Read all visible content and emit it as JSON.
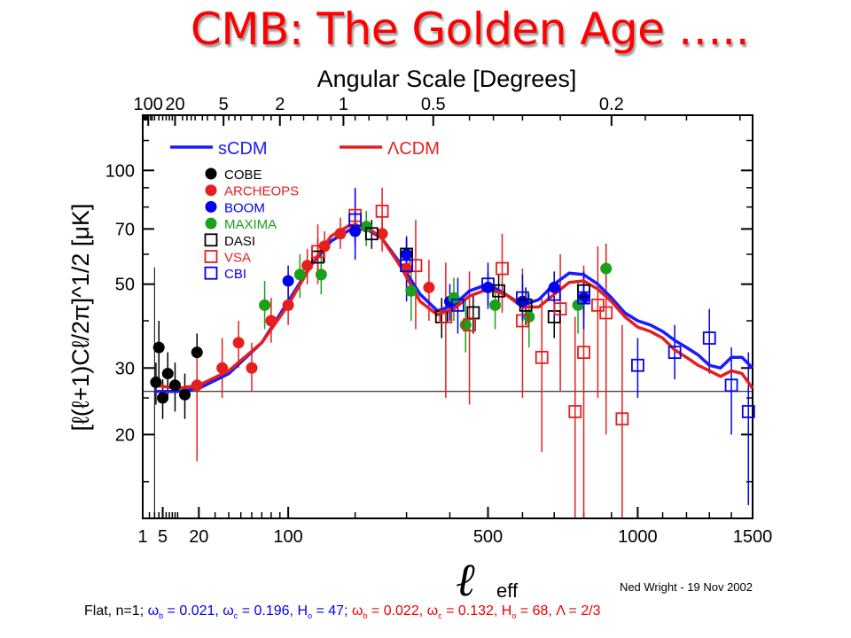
{
  "slide_title": "CMB: The Golden Age …..",
  "credit": "Ned Wright - 19 Nov 2002",
  "footer": {
    "prefix": "Flat, n=1; ",
    "scdm": {
      "ob": "ω",
      "ob_sub": "b",
      "ob_val": " = 0.021, ",
      "oc": "ω",
      "oc_sub": "c",
      "oc_val": " = 0.196, H",
      "h_sub": "o",
      "h_val": " = 47; "
    },
    "lcdm": {
      "ob": "ω",
      "ob_sub": "b",
      "ob_val": " = 0.022, ",
      "oc": "ω",
      "oc_sub": "c",
      "oc_val": " = 0.132, H",
      "h_sub": "o",
      "h_val": " = 68, ",
      "lam": "Λ",
      "lam_val": " = 2/3"
    }
  },
  "chart_data": {
    "type": "scatter",
    "title": "",
    "top_axis_label": "Angular Scale [Degrees]",
    "top_ticks": [
      "100",
      "20",
      "5",
      "2",
      "1",
      "0.5",
      "0.2"
    ],
    "top_tick_ell": [
      1.8,
      9,
      36,
      90,
      180,
      360,
      900
    ],
    "x_axis_label": "ℓ",
    "x_axis_label_sub": "eff",
    "x_scale": "sqrt",
    "xlim": [
      1,
      1500
    ],
    "x_ticks": [
      "1",
      "5",
      "20",
      "100",
      "500",
      "1000",
      "1500"
    ],
    "x_tick_values": [
      1,
      5,
      20,
      100,
      500,
      1000,
      1500
    ],
    "y_axis_label": "[ℓ(ℓ+1)Cℓ/2π]^1/2 [μK]",
    "y_scale": "log",
    "ylim": [
      12,
      140
    ],
    "y_ticks": [
      "20",
      "30",
      "50",
      "70",
      "100"
    ],
    "y_tick_values": [
      20,
      30,
      50,
      70,
      100
    ],
    "reference_line_y": 26,
    "reference_line_x": 3,
    "legend_position": "top-left",
    "models": [
      {
        "name": "sCDM",
        "color": "#1a1aff",
        "ell": [
          3,
          10,
          20,
          40,
          70,
          100,
          130,
          160,
          190,
          220,
          250,
          290,
          330,
          370,
          410,
          450,
          500,
          550,
          600,
          650,
          700,
          750,
          800,
          850,
          900,
          950,
          1000,
          1050,
          1100,
          1150,
          1200,
          1250,
          1300,
          1350,
          1400,
          1450,
          1500
        ],
        "values": [
          26,
          26,
          26.5,
          29,
          35,
          45,
          56,
          65,
          69.5,
          70,
          66,
          56,
          47,
          42.5,
          44,
          48,
          50,
          47,
          44,
          45.5,
          50,
          53.5,
          53,
          50,
          46,
          42,
          40,
          39,
          37.5,
          35.5,
          34,
          32.5,
          30.5,
          30,
          32,
          32,
          30
        ]
      },
      {
        "name": "ΛCDM",
        "color": "#e61e1e",
        "ell": [
          3,
          10,
          20,
          40,
          70,
          100,
          130,
          160,
          190,
          220,
          250,
          290,
          330,
          370,
          410,
          450,
          500,
          550,
          600,
          650,
          700,
          750,
          800,
          850,
          900,
          950,
          1000,
          1050,
          1100,
          1150,
          1200,
          1250,
          1300,
          1350,
          1400,
          1450,
          1500
        ],
        "values": [
          27,
          26.5,
          27,
          29.5,
          35,
          44,
          56,
          67,
          71.5,
          71,
          66,
          55,
          45,
          41.5,
          43,
          46.5,
          48.5,
          47,
          43.5,
          43.5,
          47,
          50.5,
          51,
          48.5,
          45,
          41,
          38.5,
          37.5,
          36,
          33.5,
          32,
          30.5,
          29.5,
          28.5,
          29.5,
          29,
          26.5
        ]
      }
    ],
    "experiments": [
      {
        "name": "COBE",
        "color": "#000000",
        "marker": "dot",
        "points": [
          [
            3.3,
            27.5,
            24,
            31
          ],
          [
            4,
            34,
            28,
            40
          ],
          [
            5,
            25,
            22,
            28
          ],
          [
            6.5,
            29,
            25,
            33
          ],
          [
            9,
            27,
            23,
            31
          ],
          [
            13,
            25.5,
            22,
            29
          ],
          [
            19,
            33,
            29,
            37
          ]
        ]
      },
      {
        "name": "ARCHEOPS",
        "color": "#e61e1e",
        "marker": "dot",
        "points": [
          [
            19,
            27,
            17,
            34
          ],
          [
            35,
            30,
            25,
            36
          ],
          [
            48,
            35,
            30,
            40
          ],
          [
            60,
            30,
            26,
            35
          ],
          [
            80,
            40,
            35,
            46
          ],
          [
            100,
            44,
            39,
            49
          ],
          [
            125,
            56,
            50,
            62
          ],
          [
            150,
            63,
            57,
            69
          ],
          [
            175,
            68,
            62,
            75
          ],
          [
            200,
            70,
            64,
            78
          ],
          [
            220,
            71,
            64,
            78
          ],
          [
            250,
            68,
            61,
            75
          ],
          [
            300,
            55,
            48,
            63
          ],
          [
            350,
            49,
            40,
            58
          ]
        ]
      },
      {
        "name": "BOOM",
        "color": "#0000ee",
        "marker": "dot",
        "points": [
          [
            100,
            51,
            45,
            56
          ],
          [
            200,
            69,
            63,
            76
          ],
          [
            300,
            60,
            55,
            66
          ],
          [
            400,
            45,
            40,
            50
          ],
          [
            500,
            49,
            44,
            54
          ],
          [
            600,
            45,
            41,
            50
          ],
          [
            700,
            49,
            44,
            54
          ],
          [
            800,
            46,
            41,
            51
          ]
        ]
      },
      {
        "name": "MAXIMA",
        "color": "#1aa01a",
        "marker": "dot",
        "points": [
          [
            73,
            44,
            38,
            51
          ],
          [
            115,
            53,
            46,
            60
          ],
          [
            145,
            53,
            47,
            60
          ],
          [
            220,
            71,
            63,
            78
          ],
          [
            310,
            48,
            40,
            56
          ],
          [
            410,
            46,
            40,
            52
          ],
          [
            440,
            39,
            33,
            45
          ],
          [
            520,
            44,
            38,
            50
          ],
          [
            620,
            41,
            34,
            47
          ],
          [
            780,
            44,
            37,
            51
          ],
          [
            880,
            55,
            46,
            64
          ]
        ]
      },
      {
        "name": "DASI",
        "color": "#000000",
        "marker": "square",
        "points": [
          [
            140,
            59,
            53,
            66
          ],
          [
            230,
            68,
            62,
            74
          ],
          [
            300,
            60,
            54,
            66
          ],
          [
            380,
            41,
            36,
            46
          ],
          [
            460,
            42,
            37,
            47
          ],
          [
            530,
            48,
            43,
            53
          ],
          [
            610,
            44,
            39,
            49
          ],
          [
            700,
            41,
            36,
            46
          ],
          [
            800,
            48,
            42,
            54
          ]
        ]
      },
      {
        "name": "VSA",
        "color": "#e61e1e",
        "marker": "square",
        "points": [
          [
            140,
            61,
            50,
            72
          ],
          [
            200,
            76,
            64,
            88
          ],
          [
            250,
            78,
            66,
            90
          ],
          [
            320,
            56,
            38,
            74
          ],
          [
            390,
            41,
            25,
            57
          ],
          [
            450,
            39,
            24,
            54
          ],
          [
            540,
            55,
            42,
            68
          ],
          [
            600,
            40,
            25,
            55
          ],
          [
            660,
            32,
            18,
            46
          ],
          [
            720,
            43,
            26,
            60
          ],
          [
            770,
            23,
            5,
            41
          ],
          [
            800,
            33,
            10,
            56
          ],
          [
            850,
            44,
            25,
            63
          ],
          [
            880,
            42,
            20,
            64
          ],
          [
            940,
            22,
            5,
            39
          ]
        ]
      },
      {
        "name": "CBI",
        "color": "#0000ee",
        "marker": "square",
        "points": [
          [
            200,
            74,
            58,
            90
          ],
          [
            300,
            56,
            45,
            67
          ],
          [
            420,
            44,
            37,
            52
          ],
          [
            500,
            50,
            43,
            57
          ],
          [
            600,
            46,
            40,
            53
          ],
          [
            700,
            47,
            40,
            54
          ],
          [
            800,
            46,
            38,
            54
          ],
          [
            1000,
            30.5,
            25,
            36
          ],
          [
            1150,
            33,
            28,
            39
          ],
          [
            1300,
            36,
            29,
            43
          ],
          [
            1400,
            27,
            20,
            34
          ],
          [
            1480,
            23,
            13,
            33
          ]
        ]
      }
    ]
  }
}
